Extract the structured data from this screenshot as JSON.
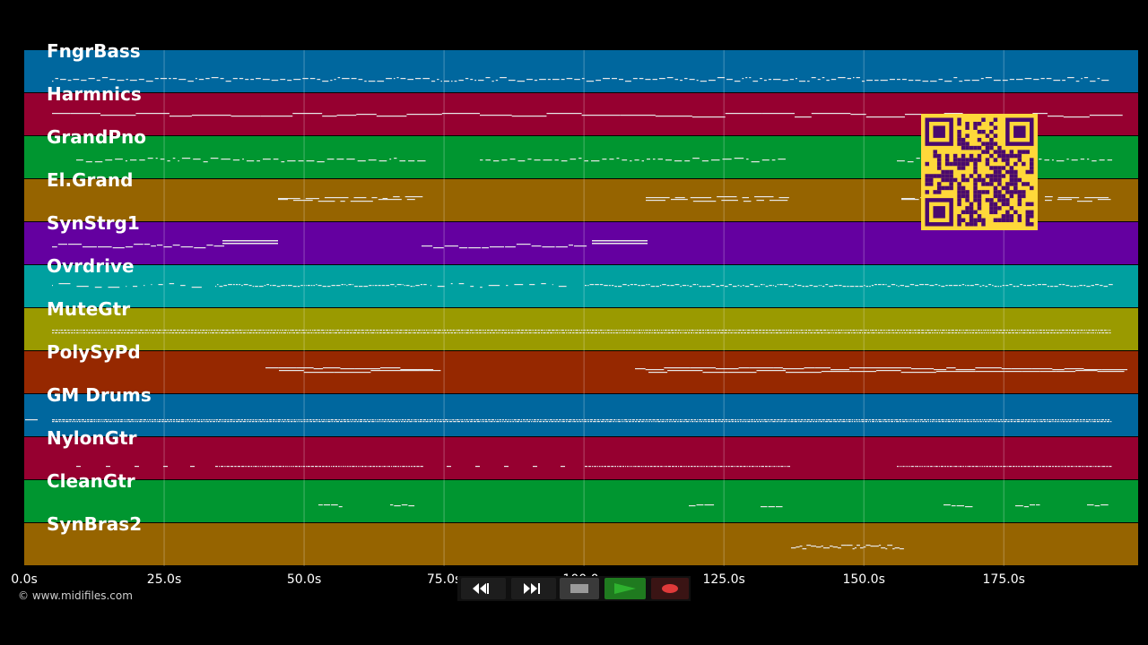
{
  "viewer": {
    "copyright": "© www.midifiles.com",
    "tracks": [
      {
        "name": "FngrBass",
        "color": "#00679e",
        "pattern": "dense-low"
      },
      {
        "name": "Harmnics",
        "color": "#960030",
        "pattern": "steps"
      },
      {
        "name": "GrandPno",
        "color": "#009630",
        "pattern": "phrases"
      },
      {
        "name": "El.Grand",
        "color": "#966400",
        "pattern": "chords"
      },
      {
        "name": "SynStrg1",
        "color": "#6400a0",
        "pattern": "strings"
      },
      {
        "name": "Ovrdrive",
        "color": "#00a0a0",
        "pattern": "riffs"
      },
      {
        "name": "MuteGtr",
        "color": "#9a9a00",
        "pattern": "dense-flat"
      },
      {
        "name": "PolySyPd",
        "color": "#962800",
        "pattern": "pads"
      },
      {
        "name": "GM Drums",
        "color": "#00679e",
        "pattern": "drums"
      },
      {
        "name": "NylonGtr",
        "color": "#960030",
        "pattern": "plucks"
      },
      {
        "name": "CleanGtr",
        "color": "#009630",
        "pattern": "sparse"
      },
      {
        "name": "SynBras2",
        "color": "#966400",
        "pattern": "brass"
      }
    ],
    "time_axis": {
      "min_seconds": 0,
      "max_seconds": 199,
      "tick_labels": [
        "0.0s",
        "25.0s",
        "50.0s",
        "75.0s",
        "100.0s",
        "125.0s",
        "150.0s",
        "175.0s"
      ],
      "tick_values": [
        0,
        25,
        50,
        75,
        100,
        125,
        150,
        175
      ]
    },
    "overlay": {
      "icon": "qr-code-icon",
      "color": "#ffd83a",
      "dark": "#4a0a6e"
    },
    "transport": {
      "buttons": [
        {
          "name": "rewind-button",
          "icon": "rewind-icon"
        },
        {
          "name": "fast-forward-button",
          "icon": "fast-forward-icon"
        },
        {
          "name": "stop-button",
          "icon": "stop-icon"
        },
        {
          "name": "play-button",
          "icon": "play-icon"
        },
        {
          "name": "record-button",
          "icon": "record-icon"
        }
      ],
      "colors": {
        "play": "#2eb12e",
        "record": "#e03a3a",
        "stop": "#9a9a9a"
      }
    }
  }
}
